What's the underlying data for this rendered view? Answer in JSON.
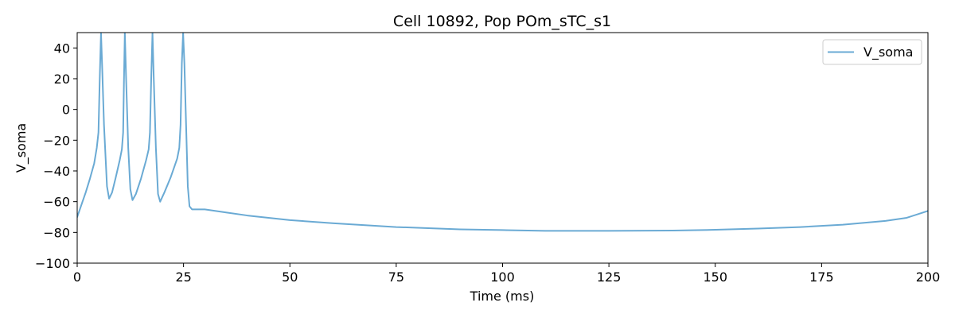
{
  "chart_data": {
    "type": "line",
    "title": "Cell 10892, Pop POm_sTC_s1",
    "xlabel": "Time (ms)",
    "ylabel": "V_soma",
    "xlim": [
      0,
      200
    ],
    "ylim": [
      -100,
      50
    ],
    "xticks": [
      0,
      25,
      50,
      75,
      100,
      125,
      150,
      175,
      200
    ],
    "yticks": [
      -100,
      -80,
      -60,
      -40,
      -20,
      0,
      20,
      40
    ],
    "grid": false,
    "legend": {
      "position": "top-right",
      "entries": [
        "V_soma"
      ]
    },
    "series": [
      {
        "name": "V_soma",
        "color": "#6aaad4",
        "x": [
          0,
          1,
          2,
          3,
          4,
          4.6,
          5.0,
          5.3,
          5.6,
          5.9,
          6.3,
          7.0,
          7.5,
          8.2,
          9.0,
          10.0,
          10.5,
          10.8,
          11.0,
          11.2,
          11.5,
          12.0,
          12.5,
          13.0,
          13.8,
          15.0,
          16.2,
          16.8,
          17.1,
          17.4,
          17.7,
          18.0,
          18.5,
          19.0,
          19.5,
          20.5,
          22.0,
          23.5,
          24.0,
          24.3,
          24.6,
          24.9,
          25.2,
          25.6,
          26.0,
          26.4,
          27.0,
          28.0,
          30.0,
          35.0,
          40.0,
          50.0,
          60.0,
          75.0,
          90.0,
          100.0,
          110.0,
          125.0,
          140.0,
          150.0,
          160.0,
          170.0,
          180.0,
          190.0,
          195.0,
          200.0
        ],
        "y": [
          -70,
          -62,
          -54,
          -45,
          -35,
          -25,
          -15,
          20,
          50,
          25,
          -10,
          -50,
          -58,
          -54,
          -45,
          -33,
          -26,
          -15,
          20,
          50,
          20,
          -25,
          -52,
          -59,
          -55,
          -45,
          -33,
          -26,
          -15,
          20,
          50,
          20,
          -25,
          -55,
          -60,
          -54,
          -44,
          -32,
          -25,
          -10,
          30,
          50,
          30,
          -10,
          -50,
          -63,
          -65,
          -65,
          -65,
          -67,
          -69,
          -72,
          -74,
          -76.5,
          -78,
          -78.5,
          -79,
          -79,
          -78.8,
          -78.3,
          -77.5,
          -76.5,
          -75,
          -72.5,
          -70.5,
          -66
        ]
      }
    ]
  }
}
